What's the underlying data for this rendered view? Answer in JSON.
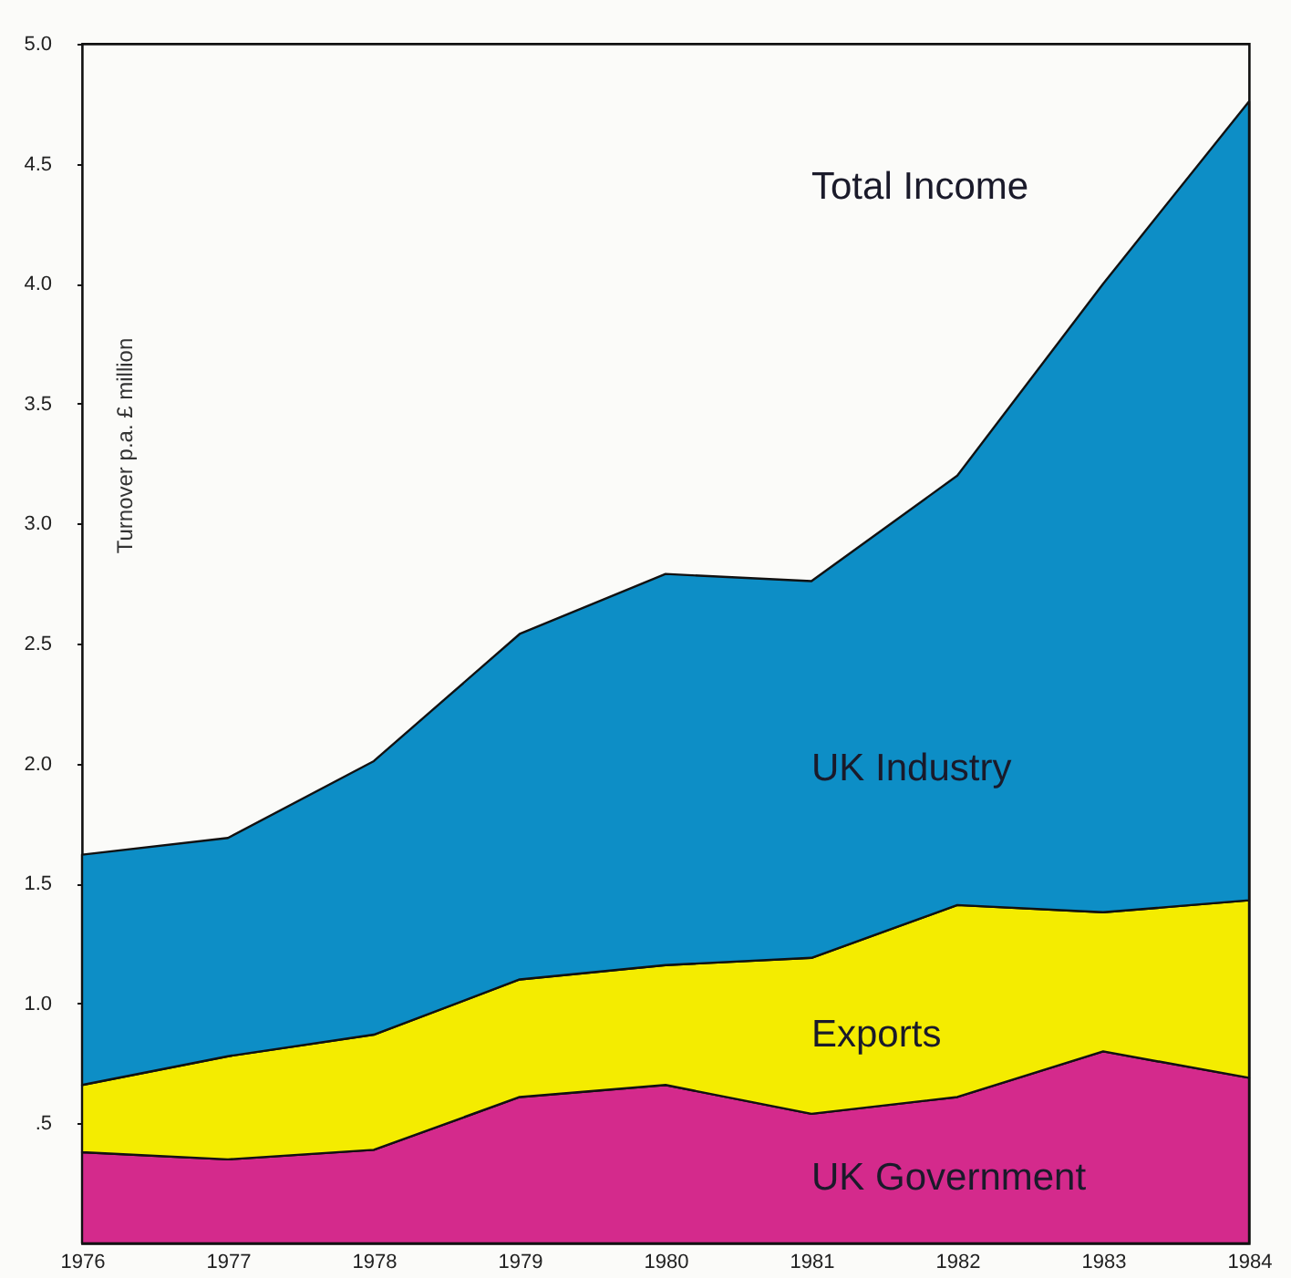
{
  "chart_data": {
    "type": "area",
    "stacked": true,
    "ylabel": "Turnover p.a. £ million",
    "x": [
      1976,
      1977,
      1978,
      1979,
      1980,
      1981,
      1982,
      1983,
      1984
    ],
    "xlim": [
      1976,
      1984
    ],
    "xticks": [
      1976,
      1977,
      1978,
      1979,
      1980,
      1981,
      1982,
      1983,
      1984
    ],
    "ylim": [
      0,
      5
    ],
    "yticks": [
      {
        "value": 0.5,
        "label": ".5"
      },
      "1.0",
      "1.5",
      "2.0",
      "2.5",
      "3.0",
      "3.5",
      "4.0",
      "4.5",
      "5.0"
    ],
    "series": [
      {
        "name": "UK Government",
        "color": "#d42a8c",
        "values": [
          0.38,
          0.35,
          0.39,
          0.61,
          0.66,
          0.54,
          0.61,
          0.8,
          0.69
        ]
      },
      {
        "name": "Exports",
        "color": "#f4ec00",
        "values": [
          0.28,
          0.43,
          0.48,
          0.49,
          0.5,
          0.65,
          0.8,
          0.58,
          0.74
        ]
      },
      {
        "name": "UK Industry",
        "color": "#0d8ec6",
        "values": [
          0.96,
          0.91,
          1.14,
          1.44,
          1.63,
          1.57,
          1.79,
          2.62,
          3.33
        ]
      }
    ],
    "annotations": [
      "Total Income"
    ]
  }
}
